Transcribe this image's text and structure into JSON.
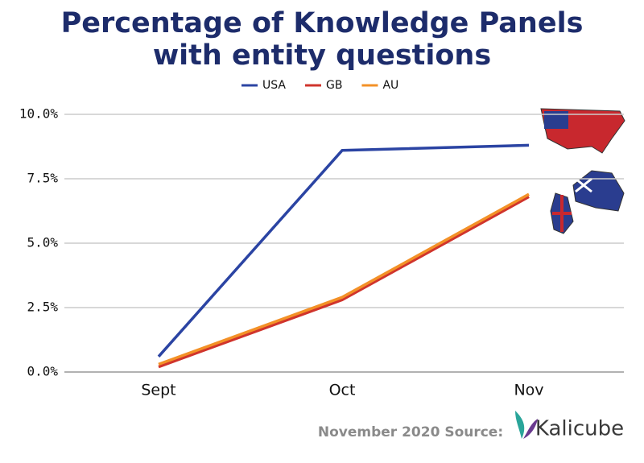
{
  "chart_data": {
    "type": "line",
    "title": "Percentage of Knowledge Panels",
    "subtitle": "with entity questions",
    "categories": [
      "Sept",
      "Oct",
      "Nov"
    ],
    "series": [
      {
        "name": "USA",
        "color": "#2b44a3",
        "values": [
          0.6,
          8.6,
          8.8
        ]
      },
      {
        "name": "GB",
        "color": "#d0342c",
        "values": [
          0.2,
          2.8,
          6.8
        ]
      },
      {
        "name": "AU",
        "color": "#f39127",
        "values": [
          0.3,
          2.9,
          6.9
        ]
      }
    ],
    "ylim": [
      0,
      10
    ],
    "yticks": [
      {
        "value": 0,
        "label": "0.0%"
      },
      {
        "value": 2.5,
        "label": "2.5%"
      },
      {
        "value": 5,
        "label": "5.0%"
      },
      {
        "value": 7.5,
        "label": "7.5%"
      },
      {
        "value": 10,
        "label": "10.0%"
      }
    ],
    "grid": true,
    "source": "November 2020 Source:",
    "brand": "Kalicube"
  }
}
